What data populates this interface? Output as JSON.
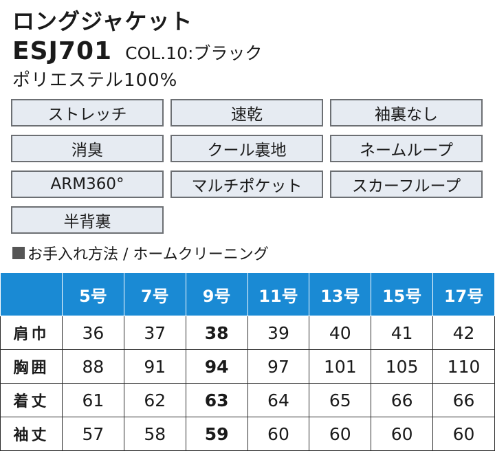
{
  "product": {
    "name": "ロングジャケット",
    "code": "ESJ701",
    "color": "COL.10:ブラック",
    "material": "ポリエステル100%"
  },
  "features": [
    "ストレッチ",
    "速乾",
    "袖裏なし",
    "消臭",
    "クール裏地",
    "ネームループ",
    "ARM360°",
    "マルチポケット",
    "スカーフループ",
    "半背裏"
  ],
  "care": {
    "label": "お手入れ方法 / ホームクリーニング"
  },
  "size_table": {
    "header_blank": "",
    "sizes": [
      "5号",
      "7号",
      "9号",
      "11号",
      "13号",
      "15号",
      "17号"
    ],
    "rows": [
      {
        "label": "肩巾",
        "values": [
          "36",
          "37",
          "38",
          "39",
          "40",
          "41",
          "42"
        ]
      },
      {
        "label": "胸囲",
        "values": [
          "88",
          "91",
          "94",
          "97",
          "101",
          "105",
          "110"
        ]
      },
      {
        "label": "着丈",
        "values": [
          "61",
          "62",
          "63",
          "64",
          "65",
          "66",
          "66"
        ]
      },
      {
        "label": "袖丈",
        "values": [
          "57",
          "58",
          "59",
          "60",
          "60",
          "60",
          "60"
        ]
      }
    ],
    "highlight_size": "9号",
    "header_color": "#1a8ad4"
  }
}
